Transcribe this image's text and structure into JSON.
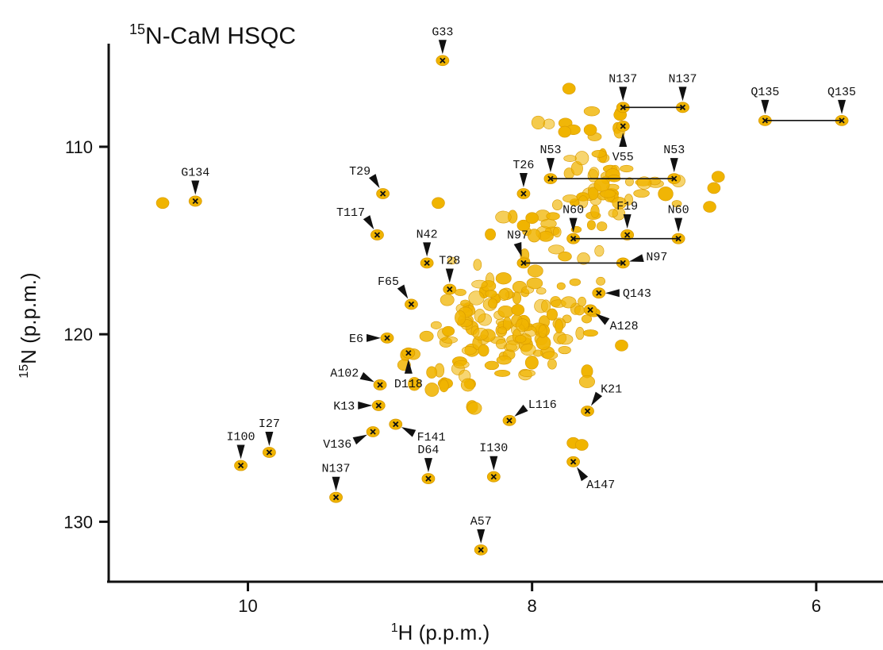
{
  "chart_data": {
    "type": "scatter",
    "title": "N-CaM HSQC",
    "title_isotope": "15",
    "xlabel": "H (p.p.m.)",
    "xlabel_isotope": "1",
    "ylabel": "N (p.p.m.)",
    "ylabel_isotope": "15",
    "xlim": [
      10.98,
      5.53
    ],
    "ylim": [
      104.5,
      133.2
    ],
    "x_reversed": true,
    "y_reversed": true,
    "x_ticks": [
      10,
      8,
      6
    ],
    "y_ticks": [
      110,
      120,
      130
    ],
    "grid": false,
    "peak_color": "#f0b400",
    "marker_color": "#111111",
    "assigned_peaks": [
      {
        "label": "G33",
        "x": 8.63,
        "y": 105.4
      },
      {
        "label": "G134",
        "x": 10.37,
        "y": 112.9
      },
      {
        "label": "T29",
        "x": 9.05,
        "y": 112.5
      },
      {
        "label": "T117",
        "x": 9.09,
        "y": 114.7
      },
      {
        "label": "T26",
        "x": 8.06,
        "y": 112.5
      },
      {
        "label": "N42",
        "x": 8.74,
        "y": 116.2
      },
      {
        "label": "T28",
        "x": 8.58,
        "y": 117.6
      },
      {
        "label": "F65",
        "x": 8.85,
        "y": 118.4
      },
      {
        "label": "E6",
        "x": 9.02,
        "y": 120.2
      },
      {
        "label": "D118",
        "x": 8.87,
        "y": 121.0
      },
      {
        "label": "A102",
        "x": 9.07,
        "y": 122.7
      },
      {
        "label": "K13",
        "x": 9.08,
        "y": 123.8
      },
      {
        "label": "I27",
        "x": 9.85,
        "y": 126.3
      },
      {
        "label": "I100",
        "x": 10.05,
        "y": 127.0
      },
      {
        "label": "V136",
        "x": 9.12,
        "y": 125.2
      },
      {
        "label": "F141",
        "x": 8.96,
        "y": 124.8
      },
      {
        "label": "N137",
        "x": 9.38,
        "y": 128.7
      },
      {
        "label": "D64",
        "x": 8.73,
        "y": 127.7
      },
      {
        "label": "I130",
        "x": 8.27,
        "y": 127.6
      },
      {
        "label": "A57",
        "x": 8.36,
        "y": 131.5
      },
      {
        "label": "L116",
        "x": 8.16,
        "y": 124.6
      },
      {
        "label": "K21",
        "x": 7.61,
        "y": 124.1
      },
      {
        "label": "A147",
        "x": 7.71,
        "y": 126.8
      },
      {
        "label": "A128",
        "x": 7.59,
        "y": 118.7
      },
      {
        "label": "Q143",
        "x": 7.53,
        "y": 117.8
      },
      {
        "label": "V55",
        "x": 7.36,
        "y": 108.9
      }
    ],
    "sidechain_pairs": [
      {
        "label": "N137",
        "x1": 7.36,
        "x2": 6.94,
        "y": 107.9
      },
      {
        "label": "Q135",
        "x1": 6.36,
        "x2": 5.82,
        "y": 108.6
      },
      {
        "label": "N53",
        "x1": 7.87,
        "x2": 7.0,
        "y": 111.7
      },
      {
        "label": "N60",
        "x1": 7.71,
        "x2": 6.97,
        "y": 114.9
      },
      {
        "label": "N97",
        "x1": 8.06,
        "x2": 7.36,
        "y": 116.2
      }
    ],
    "unassigned_singles": [
      {
        "label": "F19",
        "x": 7.33,
        "y": 114.7
      }
    ]
  }
}
